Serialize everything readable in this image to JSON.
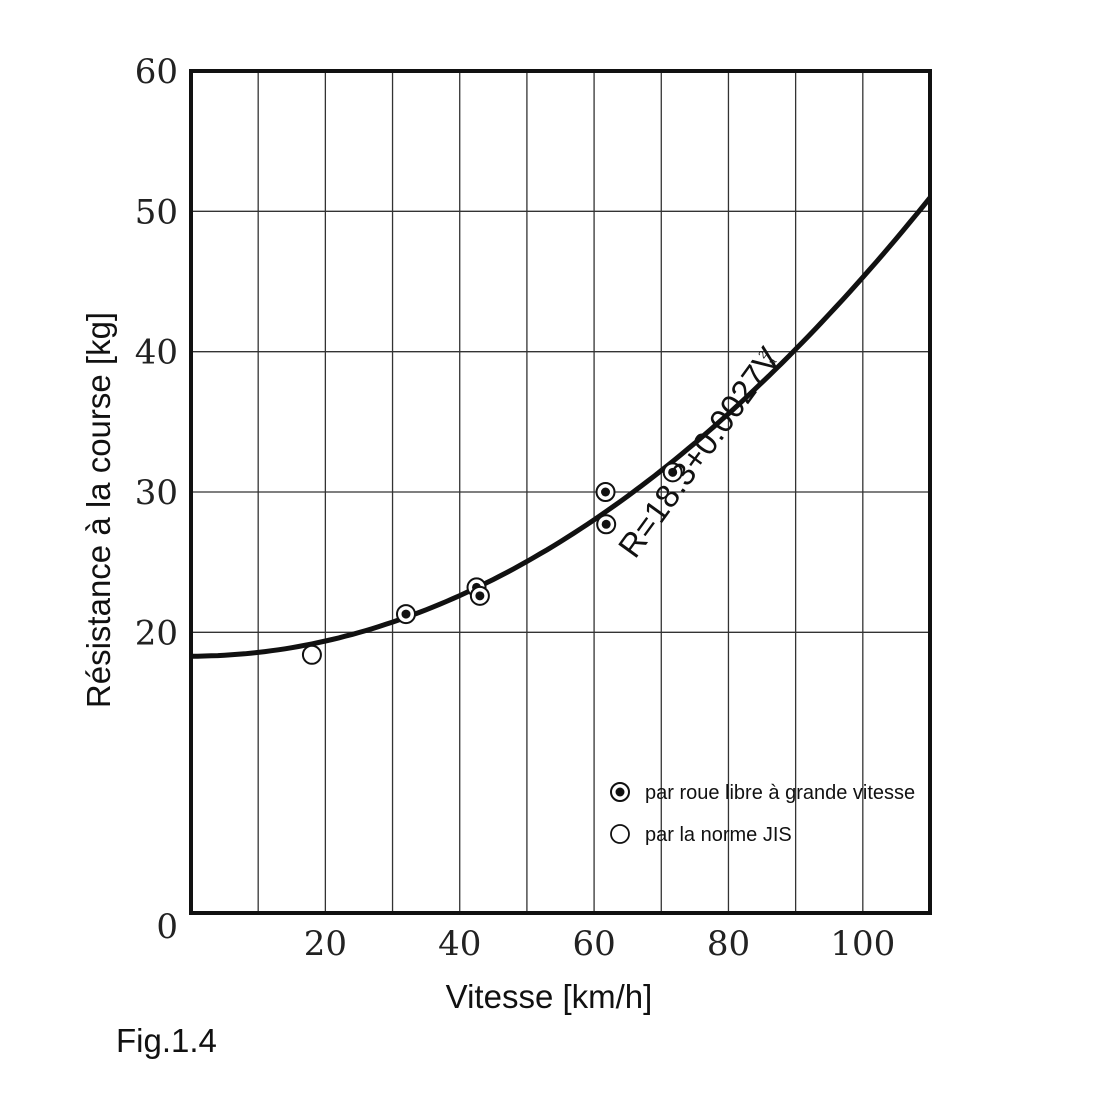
{
  "chart_data": {
    "type": "scatter",
    "figure_label": "Fig.1.4",
    "xlabel": "Vitesse [km/h]",
    "ylabel": "Résistance à la course [kg]",
    "xlim": [
      0,
      110
    ],
    "ylim": [
      0,
      60
    ],
    "x_ticks": [
      20,
      40,
      60,
      80,
      100
    ],
    "y_ticks": [
      0,
      20,
      30,
      40,
      50,
      60
    ],
    "x_grid": [
      10,
      20,
      30,
      40,
      50,
      60,
      70,
      80,
      90,
      100
    ],
    "y_grid": [
      20,
      30,
      40,
      50
    ],
    "grid": true,
    "equation": {
      "main": "R=18.3+0.0027V",
      "superscript": "2",
      "subscript": "a"
    },
    "curve": {
      "intercept": 18.3,
      "coefficient": 0.0027,
      "x_range": [
        0,
        110
      ]
    },
    "series": [
      {
        "name": "par roue libre à grande vitesse",
        "marker": "dotted-circle",
        "points": [
          {
            "x": 32,
            "y": 21.3
          },
          {
            "x": 42.5,
            "y": 23.2
          },
          {
            "x": 43,
            "y": 22.6
          },
          {
            "x": 61.7,
            "y": 30.0
          },
          {
            "x": 61.8,
            "y": 27.7
          },
          {
            "x": 71.7,
            "y": 31.4
          }
        ]
      },
      {
        "name": "par la norme JIS",
        "marker": "open-circle",
        "points": [
          {
            "x": 18,
            "y": 18.4
          }
        ]
      }
    ],
    "legend_position": "lower-right inside plot"
  }
}
